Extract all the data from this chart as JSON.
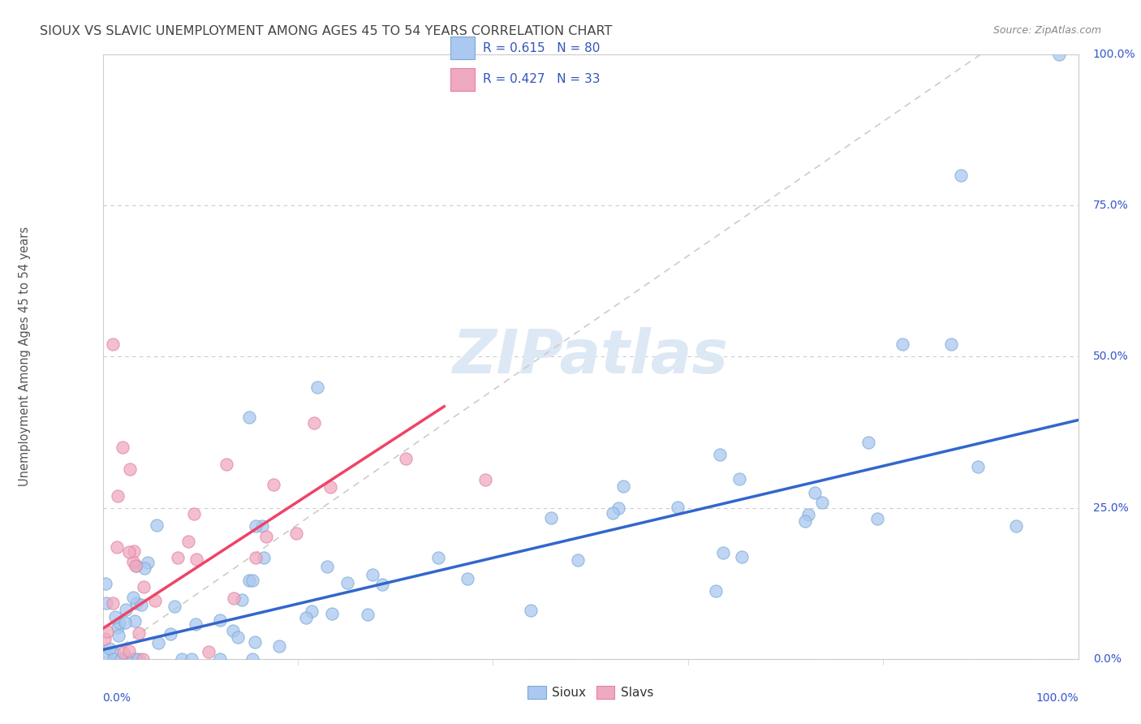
{
  "title": "SIOUX VS SLAVIC UNEMPLOYMENT AMONG AGES 45 TO 54 YEARS CORRELATION CHART",
  "source": "Source: ZipAtlas.com",
  "ylabel": "Unemployment Among Ages 45 to 54 years",
  "sioux_color": "#aac8f0",
  "slavs_color": "#f0aac0",
  "sioux_edge_color": "#7aaad0",
  "slavs_edge_color": "#e080a0",
  "sioux_line_color": "#3366cc",
  "slavs_line_color": "#ee4466",
  "trend_line_color": "#cccccc",
  "label_color": "#3355cc",
  "background_color": "#ffffff",
  "watermark_color": "#dde8f5",
  "r_n_text_color": "#3355bb",
  "axis_label_color": "#3355cc",
  "grid_color": "#cccccc",
  "spine_color": "#cccccc",
  "title_color": "#444444",
  "source_color": "#888888",
  "ylabel_color": "#555555",
  "legend_border_color": "#bbbbbb"
}
